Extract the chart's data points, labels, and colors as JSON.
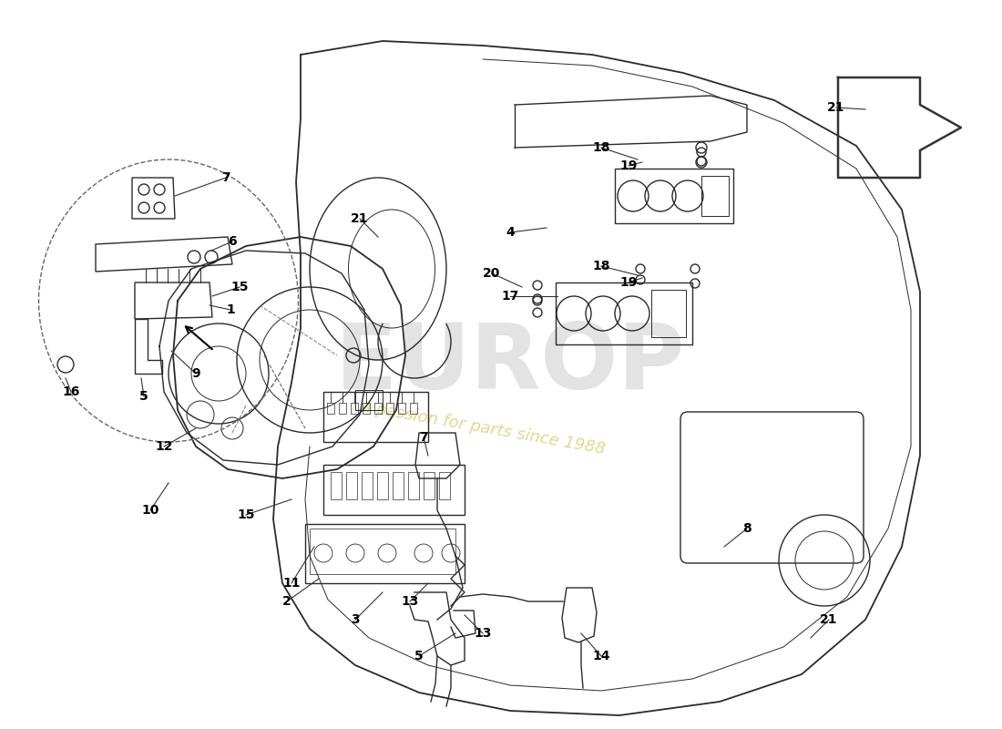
{
  "bg_color": "#ffffff",
  "lc": "#2a2a2a",
  "lw_main": 1.3,
  "lw_med": 1.0,
  "lw_thin": 0.7,
  "watermark1": "EUROP",
  "watermark2": "a passion for parts since 1988",
  "wm1_color": "#c8c8c8",
  "wm2_color": "#c8b830",
  "wm1_alpha": 0.5,
  "wm2_alpha": 0.55,
  "wm1_size": 72,
  "wm2_size": 13,
  "wm2_rotation": -10,
  "figw": 11.0,
  "figh": 8.0,
  "dpi": 100,
  "xmin": 0,
  "xmax": 1100,
  "ymin": 0,
  "ymax": 800
}
